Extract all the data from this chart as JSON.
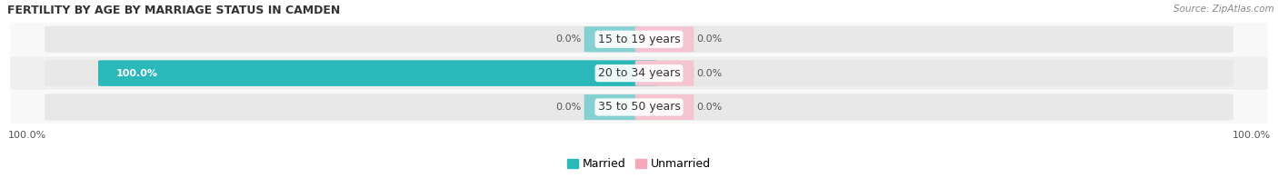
{
  "title": "FERTILITY BY AGE BY MARRIAGE STATUS IN CAMDEN",
  "source": "Source: ZipAtlas.com",
  "categories": [
    "15 to 19 years",
    "20 to 34 years",
    "35 to 50 years"
  ],
  "married_values": [
    0.0,
    100.0,
    0.0
  ],
  "unmarried_values": [
    0.0,
    0.0,
    0.0
  ],
  "married_color": "#2ab8b8",
  "married_light_color": "#85d0d0",
  "unmarried_color": "#f4a8bc",
  "unmarried_light_color": "#f4c4d0",
  "bar_bg_color": "#e8e8e8",
  "row_alt_color": "#efefef",
  "row_main_color": "#f8f8f8",
  "bg_color": "#ffffff",
  "legend_married": "Married",
  "legend_unmarried": "Unmarried",
  "bottom_left_label": "100.0%",
  "bottom_right_label": "100.0%",
  "title_fontsize": 9,
  "source_fontsize": 7.5,
  "label_fontsize": 8,
  "category_fontsize": 9
}
